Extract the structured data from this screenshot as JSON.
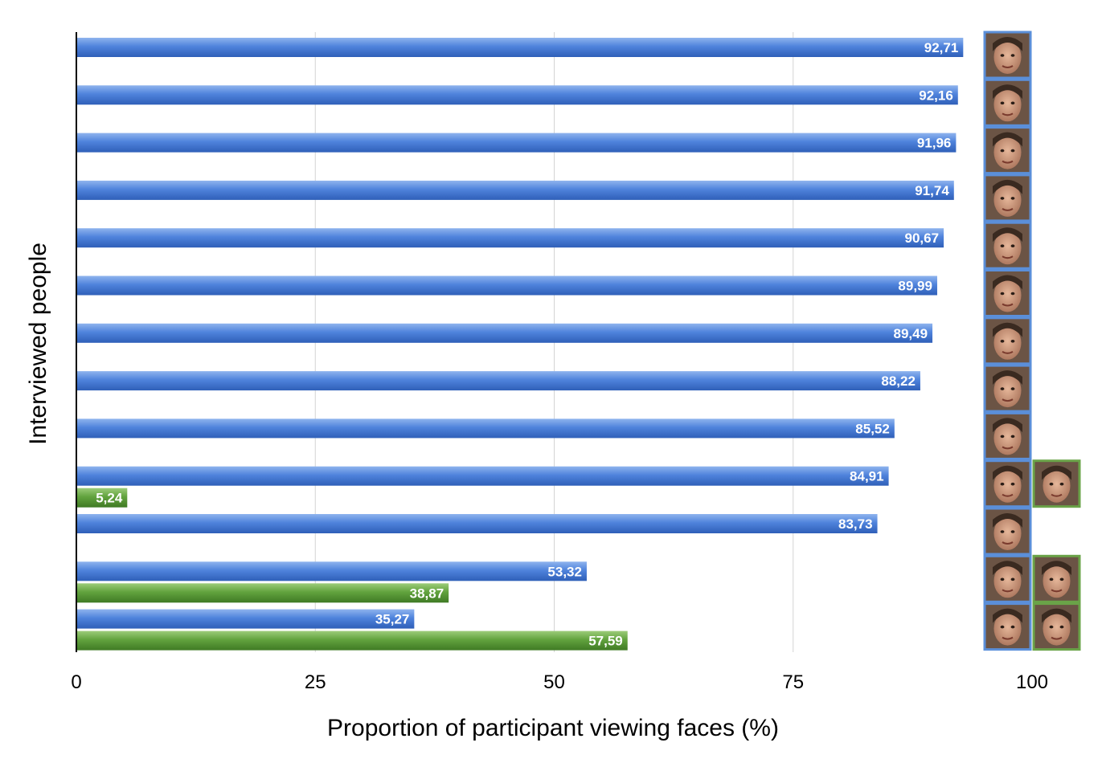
{
  "chart_data": {
    "type": "bar",
    "orientation": "horizontal",
    "xlabel": "Proportion of participant viewing faces (%)",
    "ylabel": "Interviewed people",
    "xlim": [
      0,
      100
    ],
    "xticks": [
      "0",
      "25",
      "50",
      "75",
      "100"
    ],
    "grid": "vertical",
    "colors": {
      "blue": "#4a7ed6",
      "green": "#5f9e3c",
      "blue_frame": "#5b8fd9",
      "green_frame": "#6aa348"
    },
    "rows": [
      {
        "blue": 92.71,
        "blue_label": "92,71",
        "blue_face": "woman-sunglasses-face",
        "green": null,
        "green_label": null,
        "green_face": null
      },
      {
        "blue": 92.16,
        "blue_label": "92,16",
        "blue_face": "bearded-man-glasses-face",
        "green": null,
        "green_label": null,
        "green_face": null
      },
      {
        "blue": 91.96,
        "blue_label": "91,96",
        "blue_face": "man-sunglasses-face",
        "green": null,
        "green_label": null,
        "green_face": null
      },
      {
        "blue": 91.74,
        "blue_label": "91,74",
        "blue_face": "man-face",
        "green": null,
        "green_label": null,
        "green_face": null
      },
      {
        "blue": 90.67,
        "blue_label": "90,67",
        "blue_face": "woman-curly-hair-face",
        "green": null,
        "green_label": null,
        "green_face": null
      },
      {
        "blue": 89.99,
        "blue_label": "89,99",
        "blue_face": "woman-red-hat-face",
        "green": null,
        "green_label": null,
        "green_face": null
      },
      {
        "blue": 89.49,
        "blue_label": "89,49",
        "blue_face": "woman-headscarf-face",
        "green": null,
        "green_label": null,
        "green_face": null
      },
      {
        "blue": 88.22,
        "blue_label": "88,22",
        "blue_face": "bald-man-sunglasses-face",
        "green": null,
        "green_label": null,
        "green_face": null
      },
      {
        "blue": 85.52,
        "blue_label": "85,52",
        "blue_face": "man-face",
        "green": null,
        "green_label": null,
        "green_face": null
      },
      {
        "blue": 84.91,
        "blue_label": "84,91",
        "blue_face": "woman-face",
        "green": 5.24,
        "green_label": "5,24",
        "green_face": "woman-dark-bob-face"
      },
      {
        "blue": 83.73,
        "blue_label": "83,73",
        "blue_face": "woman-smiling-face",
        "green": null,
        "green_label": null,
        "green_face": null
      },
      {
        "blue": 53.32,
        "blue_label": "53,32",
        "blue_face": "man-face",
        "green": 38.87,
        "green_label": "38,87",
        "green_face": "woman-face"
      },
      {
        "blue": 35.27,
        "blue_label": "35,27",
        "blue_face": "woman-face",
        "green": 57.59,
        "green_label": "57,59",
        "green_face": "man-face"
      }
    ]
  }
}
